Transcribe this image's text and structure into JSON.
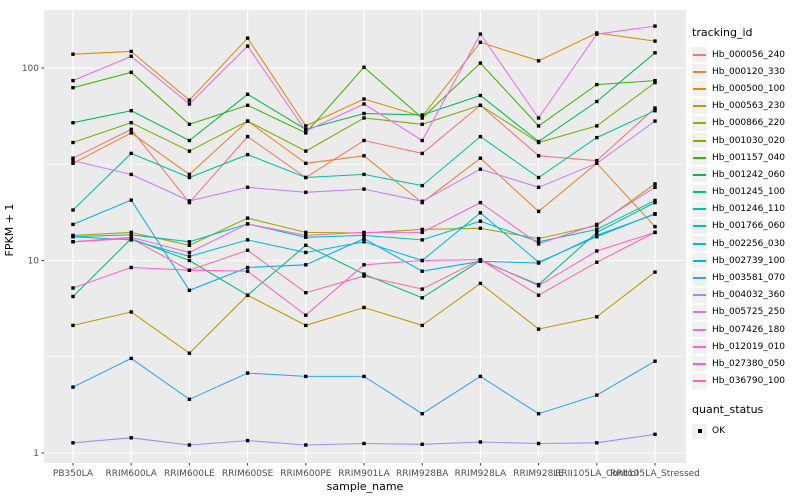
{
  "chart_data": {
    "type": "line",
    "title": "",
    "xlabel": "sample_name",
    "ylabel": "FPKM + 1",
    "y_scale": "log10",
    "y_ticks": [
      1,
      10,
      100
    ],
    "y_minor_gridlines": [
      3.1623,
      31.623
    ],
    "ylim_log": [
      0.79,
      210
    ],
    "panel_bg": "#EBEBEB",
    "gridline_color": "#FFFFFF",
    "marker": "black-filled-square",
    "categories": [
      "PB350LA",
      "RRIM600LA",
      "RRIM600LE",
      "RRIM600SE",
      "RRIM600PE",
      "RRIM901LA",
      "RRIM928BA",
      "RRIM928LA",
      "RRIM928LE",
      "RRII105LA_Control",
      "RRII105LA_Stressed"
    ],
    "legend": {
      "title": "tracking_id",
      "position": "right"
    },
    "quant_legend": {
      "title": "quant_status",
      "items": [
        {
          "label": "OK",
          "marker": "black-square"
        }
      ]
    },
    "series": [
      {
        "name": "Hb_000056_240",
        "color": "#F8766D",
        "values": [
          34,
          48,
          20,
          44,
          27,
          42,
          36,
          64,
          35,
          33,
          62
        ]
      },
      {
        "name": "Hb_000120_330",
        "color": "#EA8331",
        "values": [
          32,
          46,
          28,
          53,
          32,
          35,
          20,
          34,
          18,
          32,
          15
        ]
      },
      {
        "name": "Hb_000500_100",
        "color": "#D89000",
        "values": [
          118,
          122,
          68,
          143,
          50,
          69,
          56,
          136,
          109,
          152,
          138
        ]
      },
      {
        "name": "Hb_000563_230",
        "color": "#C09B00",
        "values": [
          4.6,
          5.4,
          3.3,
          6.6,
          4.6,
          5.7,
          4.6,
          7.6,
          4.4,
          5.1,
          8.7
        ]
      },
      {
        "name": "Hb_000866_220",
        "color": "#A3A500",
        "values": [
          13.5,
          14,
          12,
          16.6,
          14,
          13.9,
          14.5,
          14.7,
          13,
          15.2,
          25
        ]
      },
      {
        "name": "Hb_001030_020",
        "color": "#7CAE00",
        "values": [
          41,
          52,
          37,
          53,
          37,
          55,
          51,
          64,
          41,
          50,
          84
        ]
      },
      {
        "name": "Hb_001157_040",
        "color": "#39B600",
        "values": [
          79,
          95,
          51,
          64,
          46,
          101,
          55,
          106,
          50,
          82,
          86
        ]
      },
      {
        "name": "Hb_001242_060",
        "color": "#00BB4E",
        "values": [
          52,
          60,
          42,
          73,
          48,
          58,
          57,
          72,
          41.5,
          67,
          120
        ]
      },
      {
        "name": "Hb_001245_100",
        "color": "#00BF7D",
        "values": [
          6.5,
          13,
          10,
          6.6,
          12,
          8.5,
          6.4,
          10,
          7.5,
          14,
          20
        ]
      },
      {
        "name": "Hb_001246_110",
        "color": "#00C1A3",
        "values": [
          18.3,
          36,
          27,
          35.5,
          27,
          28,
          24.5,
          44,
          27,
          43.5,
          60
        ]
      },
      {
        "name": "Hb_001766_060",
        "color": "#00BFC4",
        "values": [
          13.3,
          13.6,
          12.5,
          15.5,
          13.2,
          13.5,
          12.8,
          16,
          12.5,
          14.5,
          20.5
        ]
      },
      {
        "name": "Hb_002256_030",
        "color": "#00BAE0",
        "values": [
          13.3,
          12.8,
          10.5,
          12.8,
          11,
          12.5,
          10,
          17.7,
          9.8,
          13.3,
          17.5
        ]
      },
      {
        "name": "Hb_002739_100",
        "color": "#00B0F6",
        "values": [
          15.4,
          20.6,
          7,
          9.2,
          9.5,
          13,
          8.8,
          9.9,
          9.7,
          13.5,
          17.4
        ]
      },
      {
        "name": "Hb_003581_070",
        "color": "#35A2FF",
        "values": [
          2.2,
          3.1,
          1.9,
          2.6,
          2.5,
          2.5,
          1.6,
          2.5,
          1.6,
          2.0,
          3.0
        ]
      },
      {
        "name": "Hb_004032_360",
        "color": "#9590FF",
        "values": [
          1.13,
          1.2,
          1.1,
          1.16,
          1.1,
          1.12,
          1.11,
          1.14,
          1.12,
          1.13,
          1.25
        ]
      },
      {
        "name": "Hb_005725_250",
        "color": "#C77CFF",
        "values": [
          33,
          28,
          20.4,
          24,
          22.6,
          23.5,
          20.3,
          29.8,
          24,
          32,
          53
        ]
      },
      {
        "name": "Hb_007426_180",
        "color": "#E76BF3",
        "values": [
          86,
          115,
          65,
          130,
          47,
          65,
          42,
          150,
          55,
          150,
          165
        ]
      },
      {
        "name": "Hb_012019_010",
        "color": "#FA62DB",
        "values": [
          12.5,
          13.2,
          11,
          15.5,
          13.5,
          14,
          14,
          20,
          12.2,
          15.4,
          24
        ]
      },
      {
        "name": "Hb_027380_050",
        "color": "#FF61CC",
        "values": [
          7.2,
          9.2,
          8.9,
          8.8,
          5.2,
          9.5,
          10,
          10.1,
          7.4,
          11.2,
          14
        ]
      },
      {
        "name": "Hb_036790_100",
        "color": "#FF67A4",
        "values": [
          12.5,
          13,
          8.9,
          11.3,
          6.8,
          8.3,
          7.1,
          10.1,
          6.6,
          9.8,
          14
        ]
      }
    ]
  }
}
